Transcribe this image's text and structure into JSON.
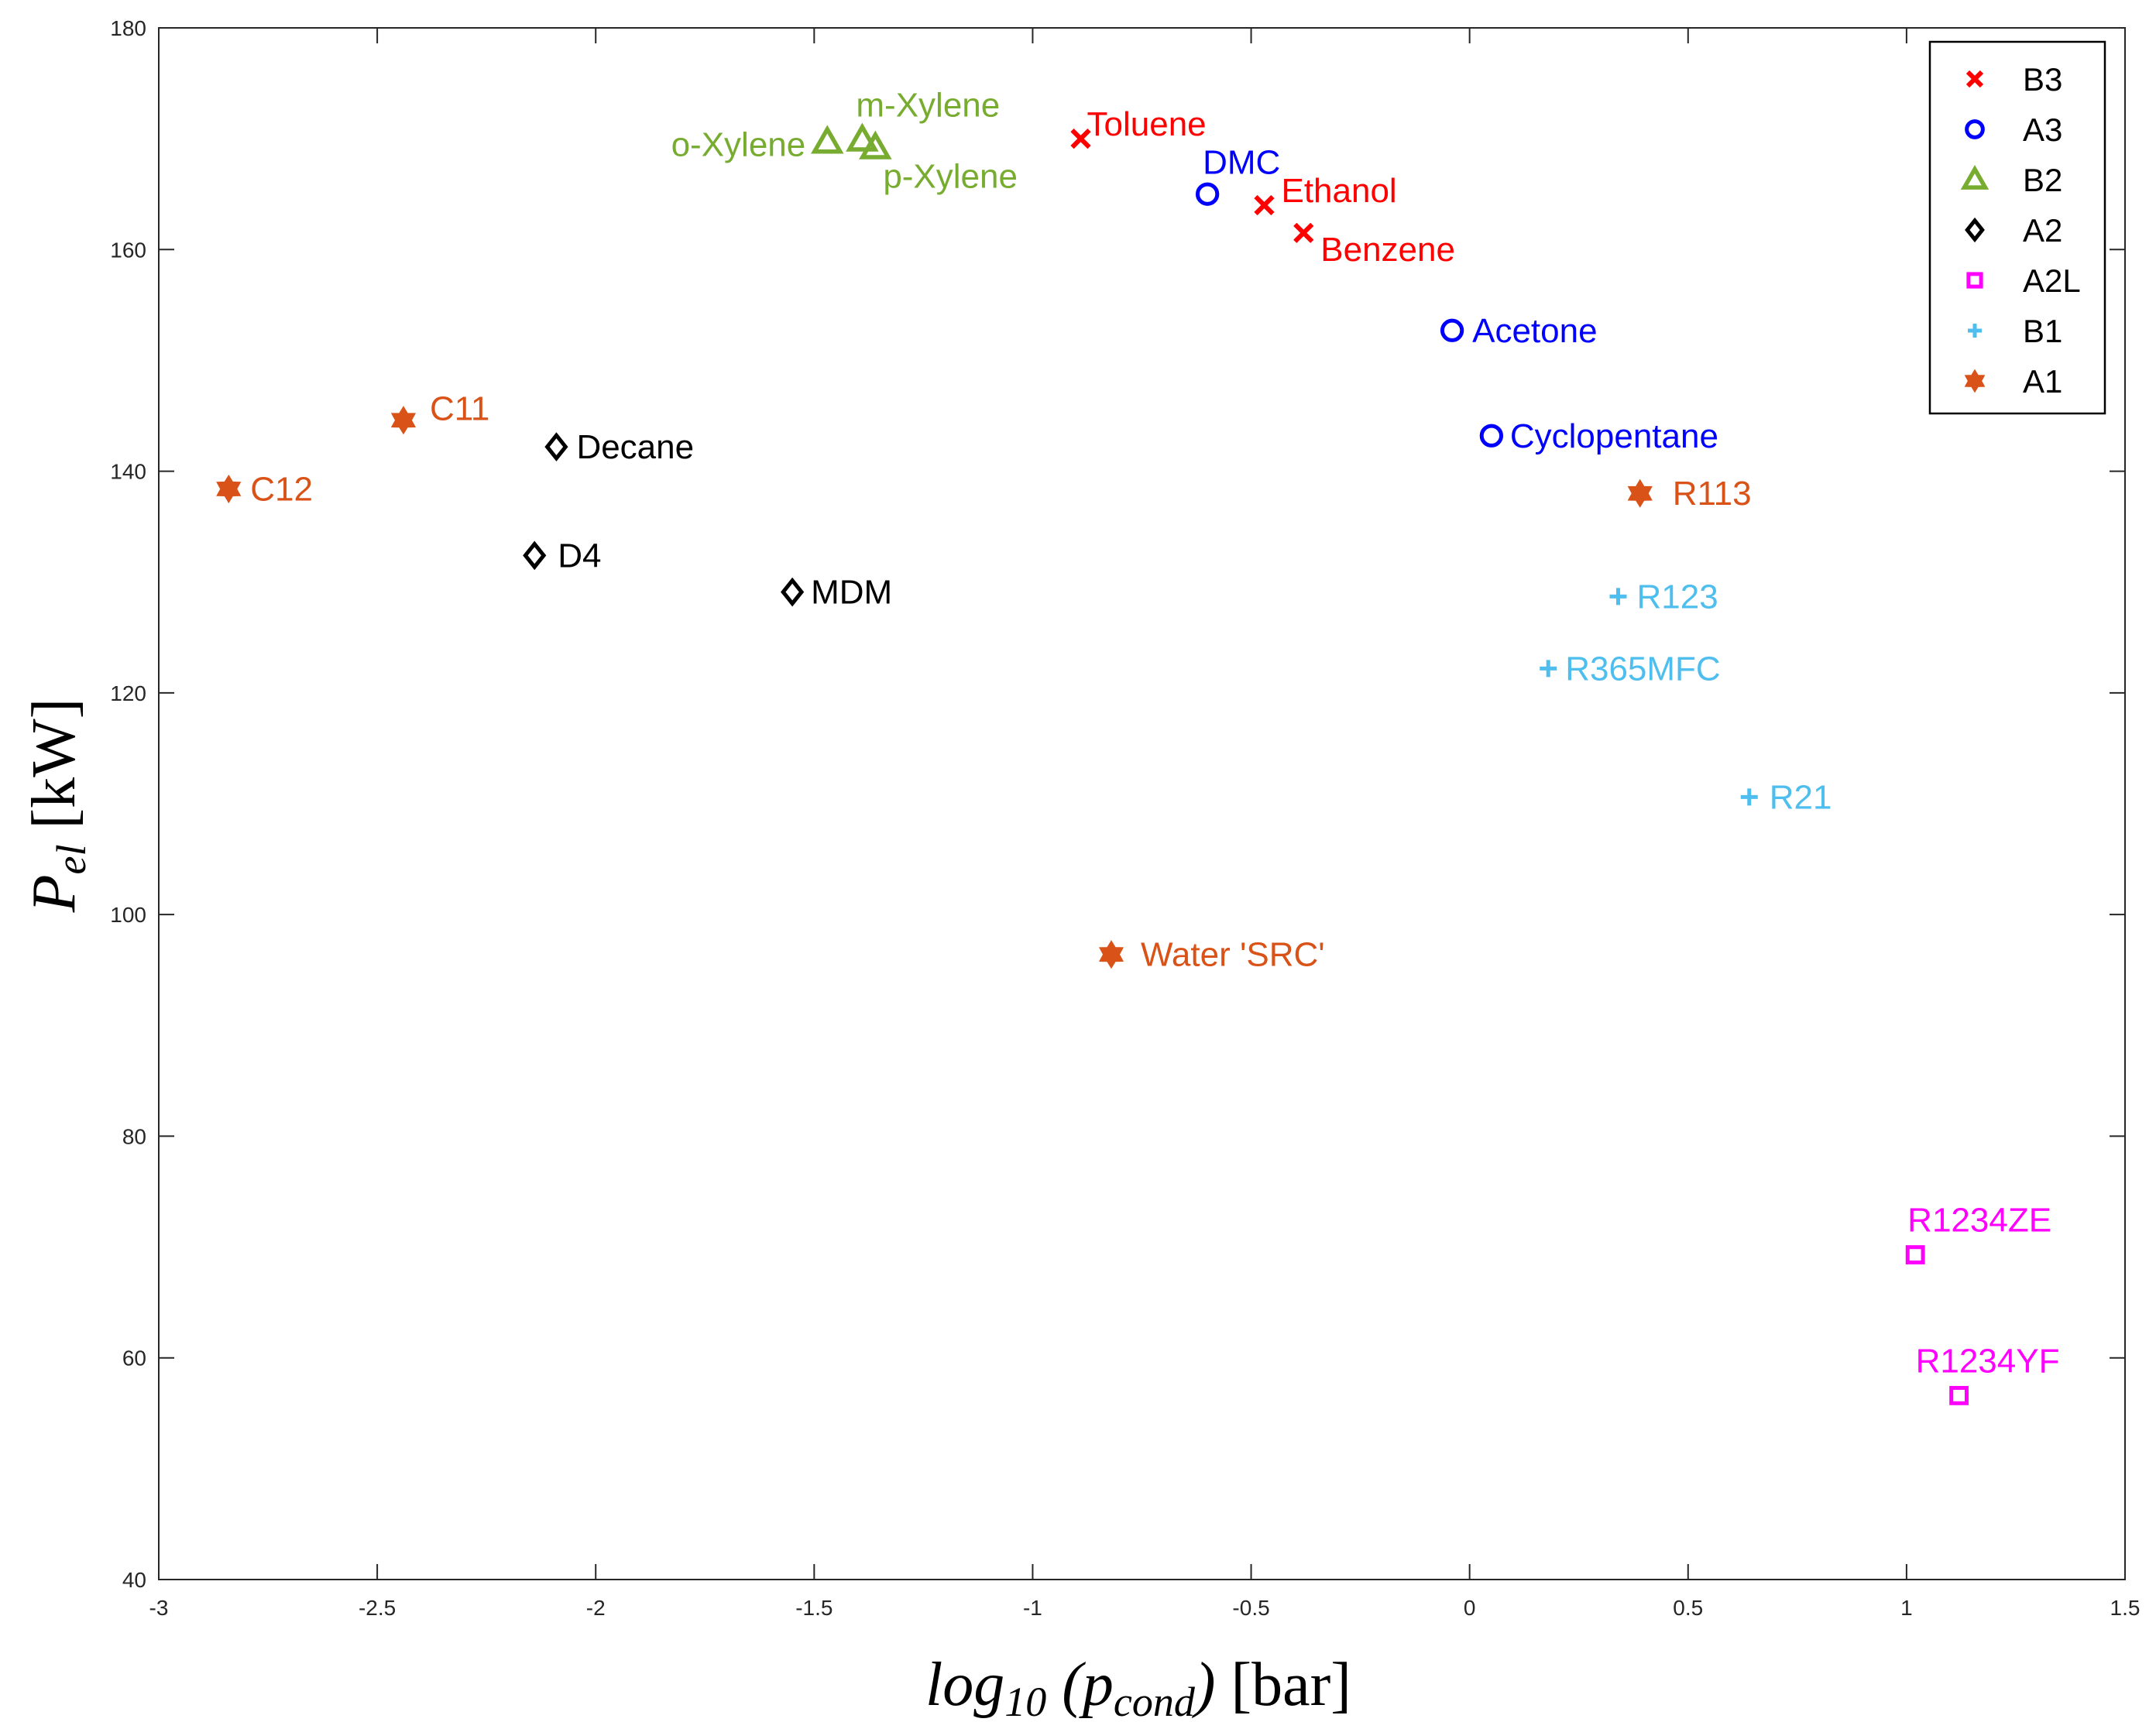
{
  "chart_data": {
    "type": "scatter",
    "title": "",
    "xlabel": {
      "main": "log",
      "sub": "10",
      "open": " (p",
      "sub2": "cond",
      "close": ")",
      "unit": " [bar]"
    },
    "ylabel": {
      "main": "P",
      "sub": "el",
      "unit": " [kW]"
    },
    "xlim": [
      -3,
      1.5
    ],
    "ylim": [
      40,
      180
    ],
    "xticks": [
      -3,
      -2.5,
      -2,
      -1.5,
      -1,
      -0.5,
      0,
      0.5,
      1,
      1.5
    ],
    "xtick_labels": [
      "-3",
      "-2.5",
      "-2",
      "-1.5",
      "-1",
      "-0.5",
      "0",
      "0.5",
      "1",
      "1.5"
    ],
    "yticks": [
      40,
      60,
      80,
      100,
      120,
      140,
      160,
      180
    ],
    "ytick_labels": [
      "40",
      "60",
      "80",
      "100",
      "120",
      "140",
      "160",
      "180"
    ],
    "grid": false,
    "legend_position": "top-right",
    "series": [
      {
        "name": "B3",
        "marker": "x",
        "color": "#ff0000",
        "points": [
          {
            "label": "Toluene",
            "x": -0.89,
            "y": 170.0
          },
          {
            "label": "Ethanol",
            "x": -0.47,
            "y": 164.0
          },
          {
            "label": "Benzene",
            "x": -0.38,
            "y": 161.5
          }
        ]
      },
      {
        "name": "A3",
        "marker": "circle",
        "color": "#0000ff",
        "points": [
          {
            "label": "DMC",
            "x": -0.6,
            "y": 165.0
          },
          {
            "label": "Acetone",
            "x": -0.04,
            "y": 152.7
          },
          {
            "label": "Cyclopentane",
            "x": 0.05,
            "y": 143.2
          }
        ]
      },
      {
        "name": "B2",
        "marker": "triangle",
        "color": "#77ac30",
        "points": [
          {
            "label": "o-Xylene",
            "x": -1.47,
            "y": 169.7
          },
          {
            "label": "m-Xylene",
            "x": -1.39,
            "y": 169.9
          },
          {
            "label": "p-Xylene",
            "x": -1.36,
            "y": 169.2
          }
        ]
      },
      {
        "name": "A2",
        "marker": "diamond",
        "color": "#000000",
        "points": [
          {
            "label": "Decane",
            "x": -2.09,
            "y": 142.2
          },
          {
            "label": "D4",
            "x": -2.14,
            "y": 132.4
          },
          {
            "label": "MDM",
            "x": -1.55,
            "y": 129.1
          }
        ]
      },
      {
        "name": "A2L",
        "marker": "square",
        "color": "#ff00ff",
        "points": [
          {
            "label": "R1234ZE",
            "x": 1.02,
            "y": 69.3
          },
          {
            "label": "R1234YF",
            "x": 1.12,
            "y": 56.6
          }
        ]
      },
      {
        "name": "B1",
        "marker": "plus",
        "color": "#4dbeee",
        "points": [
          {
            "label": "R123",
            "x": 0.34,
            "y": 128.7
          },
          {
            "label": "R365MFC",
            "x": 0.18,
            "y": 122.2
          },
          {
            "label": "R21",
            "x": 0.64,
            "y": 110.6
          }
        ]
      },
      {
        "name": "A1",
        "marker": "hexagram",
        "color": "#d95319",
        "points": [
          {
            "label": "C12",
            "x": -2.84,
            "y": 138.4
          },
          {
            "label": "C11",
            "x": -2.44,
            "y": 144.6
          },
          {
            "label": "R113",
            "x": 0.39,
            "y": 138.0
          },
          {
            "label": "Water 'SRC'",
            "x": -0.82,
            "y": 96.4
          }
        ]
      }
    ]
  }
}
